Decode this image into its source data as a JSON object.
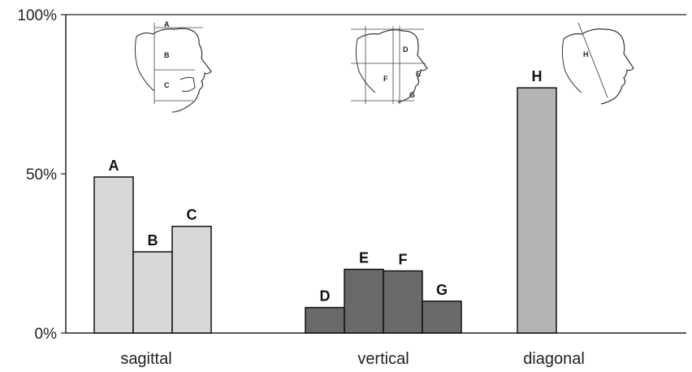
{
  "chart_data": {
    "type": "bar",
    "title": "",
    "xlabel": "",
    "ylabel": "",
    "ylim": [
      0,
      100
    ],
    "yticks": [
      {
        "value": 0,
        "label": "0%"
      },
      {
        "value": 50,
        "label": "50%"
      },
      {
        "value": 100,
        "label": "100%"
      }
    ],
    "groups": [
      {
        "name": "sagittal",
        "color": "#d8d8d8",
        "bars": [
          {
            "label": "A",
            "value": 49
          },
          {
            "label": "B",
            "value": 25.5
          },
          {
            "label": "C",
            "value": 33.5
          }
        ]
      },
      {
        "name": "vertical",
        "color": "#6a6a6a",
        "bars": [
          {
            "label": "D",
            "value": 8
          },
          {
            "label": "E",
            "value": 20
          },
          {
            "label": "F",
            "value": 19.5
          },
          {
            "label": "G",
            "value": 10
          }
        ]
      },
      {
        "name": "diagonal",
        "color": "#b4b4b4",
        "bars": [
          {
            "label": "H",
            "value": 77
          }
        ]
      }
    ],
    "grid": false,
    "legend": "none"
  },
  "insets": {
    "sagittal": {
      "letters": [
        "A",
        "B",
        "C"
      ]
    },
    "vertical": {
      "letters": [
        "D",
        "E",
        "F",
        "G"
      ]
    },
    "diagonal": {
      "letters": [
        "H"
      ]
    }
  }
}
